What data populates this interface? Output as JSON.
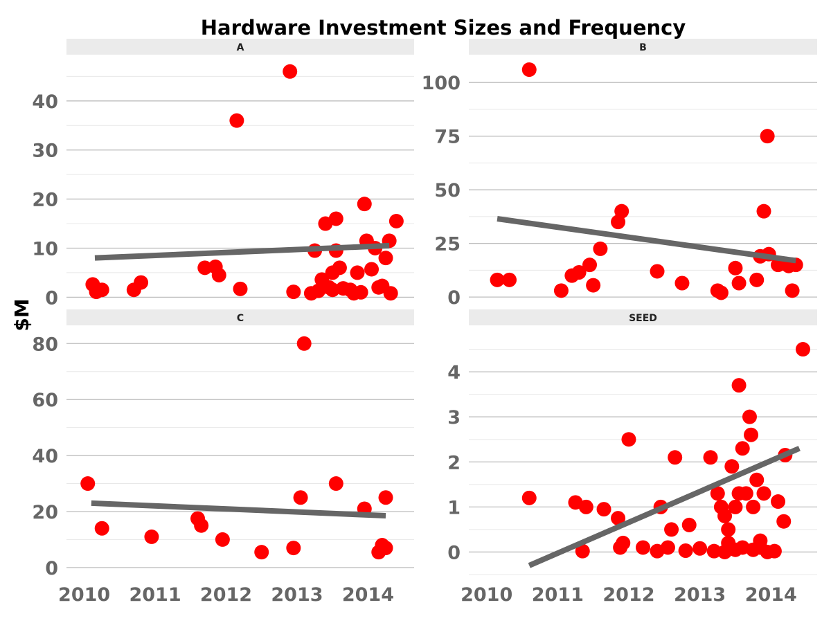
{
  "chart_data": {
    "type": "scatter",
    "title": "Hardware Investment Sizes and Frequency",
    "ylabel": "$M",
    "xlabel": "",
    "x_ticks": [
      "2010",
      "2011",
      "2012",
      "2013",
      "2014"
    ],
    "x_range": [
      2009.75,
      2014.65
    ],
    "grid": true,
    "colors": {
      "points": "#ff0000",
      "trend": "#666666",
      "strip": "#ebebeb",
      "grid": "#bdbdbd",
      "minor_grid": "#e8e8e8"
    },
    "facets": [
      {
        "name": "A",
        "ylim": [
          -1.5,
          49
        ],
        "y_ticks": [
          0,
          10,
          20,
          30,
          40
        ],
        "trend": [
          [
            2010.15,
            8.0
          ],
          [
            2014.3,
            10.5
          ]
        ],
        "points": [
          [
            2010.12,
            2.6
          ],
          [
            2010.17,
            1.1
          ],
          [
            2010.25,
            1.5
          ],
          [
            2010.7,
            1.5
          ],
          [
            2010.8,
            3.0
          ],
          [
            2011.7,
            6.0
          ],
          [
            2011.85,
            6.2
          ],
          [
            2011.9,
            4.5
          ],
          [
            2012.15,
            36.0
          ],
          [
            2012.2,
            1.7
          ],
          [
            2012.9,
            46.0
          ],
          [
            2012.95,
            1.1
          ],
          [
            2013.2,
            0.8
          ],
          [
            2013.25,
            9.5
          ],
          [
            2013.3,
            1.3
          ],
          [
            2013.35,
            3.6
          ],
          [
            2013.4,
            15.0
          ],
          [
            2013.45,
            2.0
          ],
          [
            2013.5,
            5.0
          ],
          [
            2013.5,
            1.5
          ],
          [
            2013.55,
            16.0
          ],
          [
            2013.55,
            9.5
          ],
          [
            2013.6,
            6.0
          ],
          [
            2013.65,
            1.8
          ],
          [
            2013.75,
            1.5
          ],
          [
            2013.8,
            0.8
          ],
          [
            2013.85,
            5.0
          ],
          [
            2013.9,
            1.0
          ],
          [
            2013.95,
            19.0
          ],
          [
            2013.98,
            11.5
          ],
          [
            2014.05,
            5.7
          ],
          [
            2014.1,
            10.0
          ],
          [
            2014.15,
            2.0
          ],
          [
            2014.2,
            2.3
          ],
          [
            2014.25,
            8.0
          ],
          [
            2014.3,
            11.5
          ],
          [
            2014.32,
            0.8
          ],
          [
            2014.4,
            15.5
          ]
        ]
      },
      {
        "name": "B",
        "ylim": [
          -3.5,
          112
        ],
        "y_ticks": [
          0,
          25,
          50,
          75,
          100
        ],
        "trend": [
          [
            2010.15,
            36.5
          ],
          [
            2014.35,
            17.0
          ]
        ],
        "points": [
          [
            2010.15,
            8.0
          ],
          [
            2010.32,
            8.0
          ],
          [
            2010.6,
            106.0
          ],
          [
            2011.05,
            3.0
          ],
          [
            2011.2,
            10.0
          ],
          [
            2011.3,
            11.5
          ],
          [
            2011.45,
            15.0
          ],
          [
            2011.5,
            5.5
          ],
          [
            2011.6,
            22.5
          ],
          [
            2011.85,
            35.0
          ],
          [
            2011.9,
            40.0
          ],
          [
            2012.4,
            12.0
          ],
          [
            2012.75,
            6.5
          ],
          [
            2013.25,
            3.0
          ],
          [
            2013.3,
            2.0
          ],
          [
            2013.5,
            13.5
          ],
          [
            2013.55,
            6.5
          ],
          [
            2013.8,
            8.0
          ],
          [
            2013.85,
            19.0
          ],
          [
            2013.9,
            40.0
          ],
          [
            2013.95,
            75.0
          ],
          [
            2013.97,
            20.0
          ],
          [
            2014.1,
            15.0
          ],
          [
            2014.2,
            15.5
          ],
          [
            2014.25,
            14.5
          ],
          [
            2014.3,
            3.0
          ],
          [
            2014.35,
            15.0
          ]
        ]
      },
      {
        "name": "C",
        "ylim": [
          -2.5,
          86
        ],
        "y_ticks": [
          0,
          20,
          40,
          60,
          80
        ],
        "trend": [
          [
            2010.1,
            23.0
          ],
          [
            2014.25,
            18.5
          ]
        ],
        "points": [
          [
            2010.05,
            30.0
          ],
          [
            2010.25,
            14.0
          ],
          [
            2010.95,
            11.0
          ],
          [
            2011.6,
            17.5
          ],
          [
            2011.65,
            15.0
          ],
          [
            2011.95,
            10.0
          ],
          [
            2012.5,
            5.5
          ],
          [
            2012.95,
            7.0
          ],
          [
            2013.05,
            25.0
          ],
          [
            2013.1,
            80.0
          ],
          [
            2013.55,
            30.0
          ],
          [
            2013.95,
            21.0
          ],
          [
            2014.15,
            5.5
          ],
          [
            2014.2,
            8.0
          ],
          [
            2014.25,
            25.0
          ],
          [
            2014.25,
            7.0
          ]
        ]
      },
      {
        "name": "SEED",
        "ylim": [
          -0.5,
          5.0
        ],
        "y_ticks": [
          0,
          1,
          2,
          3,
          4
        ],
        "trend": [
          [
            2010.6,
            -0.3
          ],
          [
            2014.4,
            2.3
          ]
        ],
        "points": [
          [
            2010.6,
            1.2
          ],
          [
            2011.25,
            1.1
          ],
          [
            2011.35,
            0.02
          ],
          [
            2011.4,
            1.0
          ],
          [
            2011.65,
            0.95
          ],
          [
            2011.85,
            0.75
          ],
          [
            2011.88,
            0.1
          ],
          [
            2011.92,
            0.2
          ],
          [
            2012.0,
            2.5
          ],
          [
            2012.2,
            0.1
          ],
          [
            2012.4,
            0.02
          ],
          [
            2012.45,
            1.0
          ],
          [
            2012.55,
            0.1
          ],
          [
            2012.6,
            0.5
          ],
          [
            2012.65,
            2.1
          ],
          [
            2012.8,
            0.03
          ],
          [
            2012.85,
            0.6
          ],
          [
            2013.0,
            0.08
          ],
          [
            2013.15,
            2.1
          ],
          [
            2013.2,
            0.02
          ],
          [
            2013.25,
            1.3
          ],
          [
            2013.3,
            1.0
          ],
          [
            2013.35,
            0.0
          ],
          [
            2013.35,
            0.8
          ],
          [
            2013.4,
            0.5
          ],
          [
            2013.4,
            0.2
          ],
          [
            2013.45,
            1.9
          ],
          [
            2013.5,
            1.0
          ],
          [
            2013.5,
            0.05
          ],
          [
            2013.55,
            3.7
          ],
          [
            2013.55,
            1.3
          ],
          [
            2013.6,
            2.3
          ],
          [
            2013.6,
            0.1
          ],
          [
            2013.65,
            1.3
          ],
          [
            2013.7,
            3.0
          ],
          [
            2013.72,
            2.6
          ],
          [
            2013.75,
            1.0
          ],
          [
            2013.75,
            0.05
          ],
          [
            2013.8,
            1.6
          ],
          [
            2013.85,
            0.25
          ],
          [
            2013.85,
            0.1
          ],
          [
            2013.9,
            1.3
          ],
          [
            2013.95,
            0.0
          ],
          [
            2014.05,
            0.02
          ],
          [
            2014.1,
            1.12
          ],
          [
            2014.18,
            0.68
          ],
          [
            2014.2,
            2.15
          ],
          [
            2014.45,
            4.5
          ]
        ]
      }
    ]
  }
}
